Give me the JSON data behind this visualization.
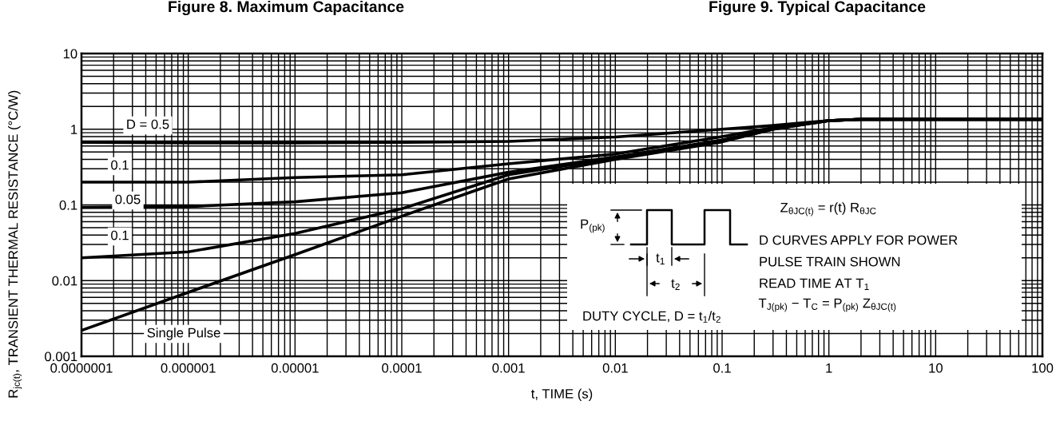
{
  "chart_data": {
    "type": "line",
    "xlabel": "t, TIME (s)",
    "ylabel": "R$_{jc(t)}$, TRANSIENT THERMAL RESISTANCE (°C/W)",
    "x": [
      1e-07,
      1e-06,
      1e-05,
      0.0001,
      0.001,
      0.01,
      0.1,
      0.3,
      1,
      2,
      10,
      100
    ],
    "series": [
      {
        "name": "D = 0.5",
        "color": "#000000",
        "values": [
          0.67,
          0.66,
          0.66,
          0.67,
          0.69,
          0.79,
          1.0,
          1.12,
          1.3,
          1.35,
          1.35,
          1.35
        ]
      },
      {
        "name": "0.1",
        "color": "#000000",
        "values": [
          0.2,
          0.2,
          0.23,
          0.25,
          0.35,
          0.47,
          0.8,
          1.05,
          1.3,
          1.35,
          1.35,
          1.35
        ]
      },
      {
        "name": "0.05",
        "color": "#000000",
        "values": [
          0.093,
          0.095,
          0.11,
          0.145,
          0.27,
          0.43,
          0.72,
          1.02,
          1.3,
          1.35,
          1.35,
          1.35
        ]
      },
      {
        "name": "0.1",
        "color": "#000000",
        "values": [
          0.02,
          0.024,
          0.042,
          0.089,
          0.25,
          0.42,
          0.7,
          1.0,
          1.3,
          1.35,
          1.35,
          1.35
        ]
      },
      {
        "name": "Single Pulse",
        "color": "#000000",
        "values": [
          0.0022,
          0.007,
          0.022,
          0.071,
          0.22,
          0.4,
          0.68,
          1.0,
          1.3,
          1.35,
          1.35,
          1.35
        ]
      }
    ],
    "log": "xy",
    "xlim": [
      1e-07,
      100
    ],
    "ylim": [
      0.001,
      10
    ],
    "xticks": [
      {
        "value": 1e-07,
        "label": "0.0000001"
      },
      {
        "value": 1e-06,
        "label": "0.000001"
      },
      {
        "value": 1e-05,
        "label": "0.00001"
      },
      {
        "value": 0.0001,
        "label": "0.0001"
      },
      {
        "value": 0.001,
        "label": "0.001"
      },
      {
        "value": 0.01,
        "label": "0.01"
      },
      {
        "value": 0.1,
        "label": "0.1"
      },
      1,
      10,
      100
    ],
    "yticks": [
      {
        "value": 0.001,
        "label": "0.001"
      },
      {
        "value": 0.01,
        "label": "0.01"
      },
      {
        "value": 0.1,
        "label": "0.1"
      },
      1,
      10
    ],
    "grid": true,
    "legend": false,
    "marker": "none",
    "line_style": "solid",
    "annotations": [
      "Figure 8. Maximum Capacitance",
      "Figure 9. Typical Capacitance",
      "P$_{(pk)}$",
      "t$_{1}$",
      "t$_{2}$",
      "Z$_{θJC(t)}$ = r(t) R$_{θJC}$",
      "D CURVES APPLY FOR POWER",
      "PULSE TRAIN SHOWN",
      "READ TIME AT T$_{1}$",
      "T$_{J(pk)}$ − T$_{C}$ = P$_{(pk)}$ Z$_{θJC(t)}$",
      "DUTY CYCLE, D = t$_{1}$/t$_{2}$"
    ]
  }
}
